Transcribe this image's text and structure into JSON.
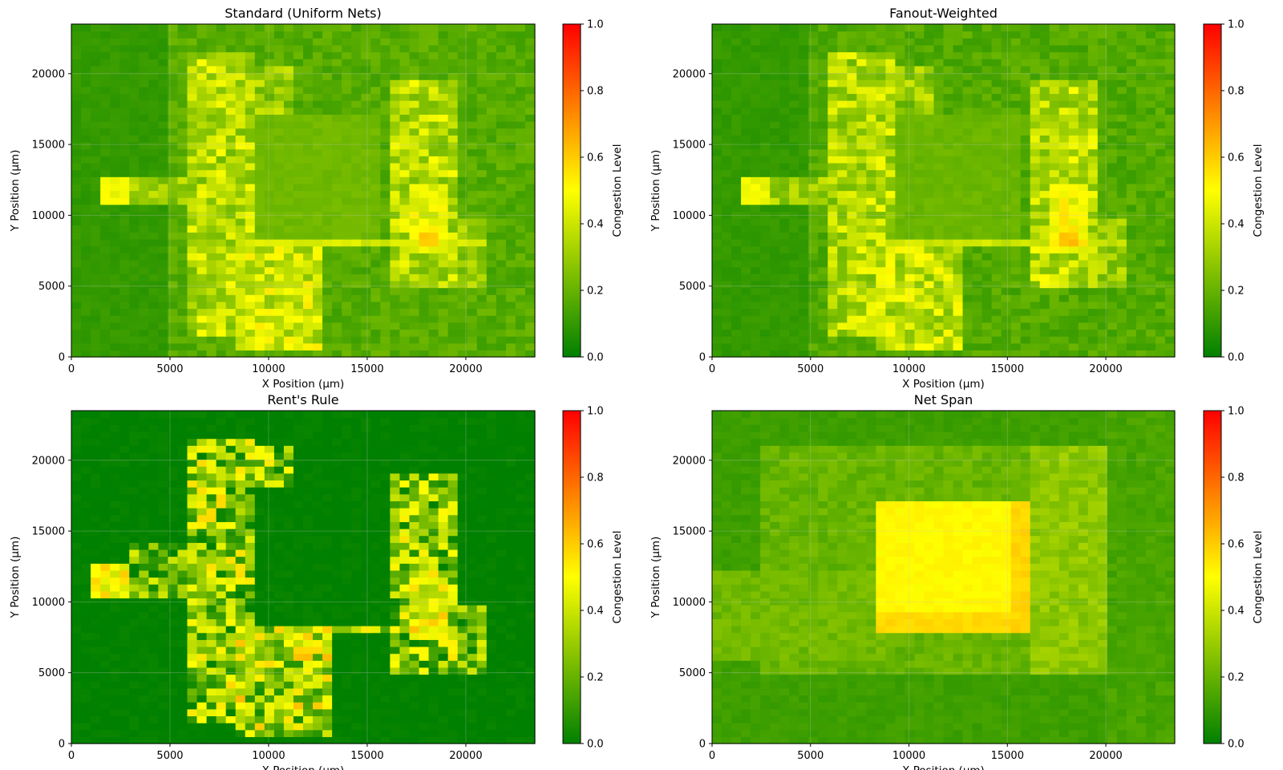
{
  "colors": {
    "colormap": [
      "#008000",
      "#ffff00",
      "#ff0000"
    ],
    "gridline": "#c8c8c8"
  },
  "chart_data": [
    {
      "type": "heatmap",
      "title": "Standard (Uniform Nets)",
      "xlabel": "X Position (µm)",
      "ylabel": "Y Position (µm)",
      "xlim": [
        0,
        23500
      ],
      "ylim": [
        0,
        23500
      ],
      "xticks": [
        0,
        5000,
        10000,
        15000,
        20000
      ],
      "yticks": [
        0,
        5000,
        10000,
        15000,
        20000
      ],
      "grid": true,
      "colorbar": {
        "label": "Congestion Level",
        "range": [
          0,
          1
        ],
        "ticks": [
          "0.0",
          "0.2",
          "0.4",
          "0.6",
          "0.8",
          "1.0"
        ]
      },
      "background_level": 0.1,
      "regions": [
        {
          "x": [
            5000,
            23500
          ],
          "y": [
            0,
            23500
          ],
          "value": 0.17,
          "spread": 0.05
        },
        {
          "x": [
            8800,
            15800
          ],
          "y": [
            8400,
            17000
          ],
          "value": 0.22,
          "spread": 0.02
        },
        {
          "x": [
            6000,
            9500
          ],
          "y": [
            1500,
            21500
          ],
          "value": 0.36,
          "spread": 0.14
        },
        {
          "x": [
            9500,
            11500
          ],
          "y": [
            17000,
            20500
          ],
          "value": 0.3,
          "spread": 0.12
        },
        {
          "x": [
            16000,
            19800
          ],
          "y": [
            5000,
            19500
          ],
          "value": 0.36,
          "spread": 0.14
        },
        {
          "x": [
            8500,
            12500
          ],
          "y": [
            700,
            8000
          ],
          "value": 0.4,
          "spread": 0.14
        },
        {
          "x": [
            1500,
            3000
          ],
          "y": [
            10800,
            12600
          ],
          "value": 0.48,
          "spread": 0.04
        },
        {
          "x": [
            3000,
            6000
          ],
          "y": [
            10800,
            12600
          ],
          "value": 0.3,
          "spread": 0.1
        },
        {
          "x": [
            8400,
            21000
          ],
          "y": [
            7900,
            8500
          ],
          "value": 0.42,
          "spread": 0.04
        },
        {
          "x": [
            17000,
            19000
          ],
          "y": [
            7500,
            12000
          ],
          "value": 0.46,
          "spread": 0.08
        },
        {
          "x": [
            19800,
            21000
          ],
          "y": [
            5000,
            10000
          ],
          "value": 0.3,
          "spread": 0.1
        },
        {
          "x": [
            17500,
            18500
          ],
          "y": [
            7900,
            8600
          ],
          "value": 0.6,
          "spread": 0.02
        }
      ]
    },
    {
      "type": "heatmap",
      "title": "Fanout-Weighted",
      "xlabel": "X Position (µm)",
      "ylabel": "Y Position (µm)",
      "xlim": [
        0,
        23500
      ],
      "ylim": [
        0,
        23500
      ],
      "xticks": [
        0,
        5000,
        10000,
        15000,
        20000
      ],
      "yticks": [
        0,
        5000,
        10000,
        15000,
        20000
      ],
      "grid": true,
      "colorbar": {
        "label": "Congestion Level",
        "range": [
          0,
          1
        ],
        "ticks": [
          "0.0",
          "0.2",
          "0.4",
          "0.6",
          "0.8",
          "1.0"
        ]
      },
      "background_level": 0.1,
      "regions": [
        {
          "x": [
            5000,
            23500
          ],
          "y": [
            0,
            23500
          ],
          "value": 0.16,
          "spread": 0.05
        },
        {
          "x": [
            8800,
            15800
          ],
          "y": [
            8400,
            17000
          ],
          "value": 0.21,
          "spread": 0.02
        },
        {
          "x": [
            6000,
            9500
          ],
          "y": [
            1500,
            21500
          ],
          "value": 0.35,
          "spread": 0.14
        },
        {
          "x": [
            9500,
            11500
          ],
          "y": [
            17000,
            20500
          ],
          "value": 0.3,
          "spread": 0.12
        },
        {
          "x": [
            16000,
            19800
          ],
          "y": [
            5000,
            19500
          ],
          "value": 0.37,
          "spread": 0.14
        },
        {
          "x": [
            8500,
            12500
          ],
          "y": [
            700,
            8000
          ],
          "value": 0.38,
          "spread": 0.14
        },
        {
          "x": [
            1500,
            3000
          ],
          "y": [
            10800,
            12600
          ],
          "value": 0.47,
          "spread": 0.04
        },
        {
          "x": [
            3000,
            6000
          ],
          "y": [
            10800,
            12600
          ],
          "value": 0.3,
          "spread": 0.1
        },
        {
          "x": [
            8400,
            21000
          ],
          "y": [
            7900,
            8500
          ],
          "value": 0.4,
          "spread": 0.04
        },
        {
          "x": [
            17000,
            19000
          ],
          "y": [
            7500,
            12000
          ],
          "value": 0.48,
          "spread": 0.08
        },
        {
          "x": [
            19800,
            21000
          ],
          "y": [
            5000,
            10000
          ],
          "value": 0.3,
          "spread": 0.1
        },
        {
          "x": [
            17500,
            18500
          ],
          "y": [
            7900,
            8600
          ],
          "value": 0.62,
          "spread": 0.02
        }
      ]
    },
    {
      "type": "heatmap",
      "title": "Rent's Rule",
      "xlabel": "X Position (µm)",
      "ylabel": "Y Position (µm)",
      "xlim": [
        0,
        23500
      ],
      "ylim": [
        0,
        23500
      ],
      "xticks": [
        0,
        5000,
        10000,
        15000,
        20000
      ],
      "yticks": [
        0,
        5000,
        10000,
        15000,
        20000
      ],
      "grid": true,
      "colorbar": {
        "label": "Congestion Level",
        "range": [
          0,
          1
        ],
        "ticks": [
          "0.0",
          "0.2",
          "0.4",
          "0.6",
          "0.8",
          "1.0"
        ]
      },
      "background_level": 0.0,
      "regions": [
        {
          "x": [
            6000,
            9500
          ],
          "y": [
            1500,
            21500
          ],
          "value": 0.28,
          "spread": 0.3
        },
        {
          "x": [
            9500,
            11500
          ],
          "y": [
            18000,
            21000
          ],
          "value": 0.25,
          "spread": 0.3
        },
        {
          "x": [
            16000,
            19800
          ],
          "y": [
            5000,
            19000
          ],
          "value": 0.26,
          "spread": 0.3
        },
        {
          "x": [
            8500,
            13000
          ],
          "y": [
            700,
            8000
          ],
          "value": 0.34,
          "spread": 0.3
        },
        {
          "x": [
            1000,
            3000
          ],
          "y": [
            10500,
            12600
          ],
          "value": 0.5,
          "spread": 0.1
        },
        {
          "x": [
            3000,
            6000
          ],
          "y": [
            10500,
            14000
          ],
          "value": 0.22,
          "spread": 0.26
        },
        {
          "x": [
            8400,
            21000
          ],
          "y": [
            7900,
            8500
          ],
          "value": 0.3,
          "spread": 0.3
        },
        {
          "x": [
            17000,
            19000
          ],
          "y": [
            7500,
            12000
          ],
          "value": 0.42,
          "spread": 0.2
        },
        {
          "x": [
            19800,
            21000
          ],
          "y": [
            5000,
            10000
          ],
          "value": 0.2,
          "spread": 0.25
        },
        {
          "x": [
            6500,
            7000
          ],
          "y": [
            15000,
            16000
          ],
          "value": 0.55,
          "spread": 0.05
        },
        {
          "x": [
            11500,
            12000
          ],
          "y": [
            6000,
            7000
          ],
          "value": 0.6,
          "spread": 0.03
        }
      ]
    },
    {
      "type": "heatmap",
      "title": "Net Span",
      "xlabel": "X Position (µm)",
      "ylabel": "Y Position (µm)",
      "xlim": [
        0,
        23500
      ],
      "ylim": [
        0,
        23500
      ],
      "xticks": [
        0,
        5000,
        10000,
        15000,
        20000
      ],
      "yticks": [
        0,
        5000,
        10000,
        15000,
        20000
      ],
      "grid": true,
      "colorbar": {
        "label": "Congestion Level",
        "range": [
          0,
          1
        ],
        "ticks": [
          "0.0",
          "0.2",
          "0.4",
          "0.6",
          "0.8",
          "1.0"
        ]
      },
      "background_level": 0.12,
      "regions": [
        {
          "x": [
            2500,
            17000
          ],
          "y": [
            5000,
            21000
          ],
          "value": 0.2,
          "spread": 0.04
        },
        {
          "x": [
            16000,
            20000
          ],
          "y": [
            5000,
            21000
          ],
          "value": 0.28,
          "spread": 0.05
        },
        {
          "x": [
            0,
            9000
          ],
          "y": [
            6000,
            12000
          ],
          "value": 0.22,
          "spread": 0.04
        },
        {
          "x": [
            8500,
            16000
          ],
          "y": [
            8000,
            17000
          ],
          "value": 0.51,
          "spread": 0.02
        },
        {
          "x": [
            8500,
            16000
          ],
          "y": [
            8000,
            9500
          ],
          "value": 0.57,
          "spread": 0.02
        },
        {
          "x": [
            15300,
            16000
          ],
          "y": [
            8000,
            17000
          ],
          "value": 0.58,
          "spread": 0.02
        },
        {
          "x": [
            20000,
            23500
          ],
          "y": [
            0,
            23500
          ],
          "value": 0.14,
          "spread": 0.03
        }
      ]
    }
  ]
}
